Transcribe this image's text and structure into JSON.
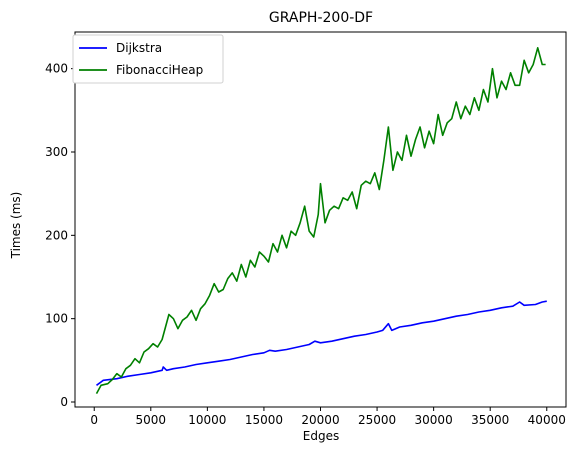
{
  "chart_data": {
    "type": "line",
    "title": "GRAPH-200-DF",
    "xlabel": "Edges",
    "ylabel": "Times (ms)",
    "xlim": [
      -1700,
      41700
    ],
    "ylim": [
      -6,
      444
    ],
    "xticks": [
      0,
      5000,
      10000,
      15000,
      20000,
      25000,
      30000,
      35000,
      40000
    ],
    "yticks": [
      0,
      100,
      200,
      300,
      400
    ],
    "legend": "top-left",
    "grid": false,
    "series": [
      {
        "name": "Dijkstra",
        "color": "#0000ff",
        "points": [
          [
            200,
            20
          ],
          [
            800,
            26
          ],
          [
            2000,
            28
          ],
          [
            3000,
            31
          ],
          [
            4000,
            33
          ],
          [
            5000,
            35
          ],
          [
            6000,
            38
          ],
          [
            6100,
            42
          ],
          [
            6400,
            38
          ],
          [
            7000,
            40
          ],
          [
            8000,
            42
          ],
          [
            9000,
            45
          ],
          [
            10000,
            47
          ],
          [
            11000,
            49
          ],
          [
            12000,
            51
          ],
          [
            13000,
            54
          ],
          [
            14000,
            57
          ],
          [
            15000,
            59
          ],
          [
            15500,
            62
          ],
          [
            16000,
            61
          ],
          [
            17000,
            63
          ],
          [
            18000,
            66
          ],
          [
            19000,
            69
          ],
          [
            19500,
            73
          ],
          [
            20000,
            71
          ],
          [
            21000,
            73
          ],
          [
            22000,
            76
          ],
          [
            23000,
            79
          ],
          [
            24000,
            81
          ],
          [
            25000,
            84
          ],
          [
            25500,
            86
          ],
          [
            26000,
            94
          ],
          [
            26300,
            86
          ],
          [
            27000,
            90
          ],
          [
            28000,
            92
          ],
          [
            29000,
            95
          ],
          [
            30000,
            97
          ],
          [
            31000,
            100
          ],
          [
            32000,
            103
          ],
          [
            33000,
            105
          ],
          [
            34000,
            108
          ],
          [
            35000,
            110
          ],
          [
            36000,
            113
          ],
          [
            37000,
            115
          ],
          [
            37600,
            120
          ],
          [
            38000,
            116
          ],
          [
            39000,
            117
          ],
          [
            39600,
            120
          ],
          [
            40000,
            121
          ]
        ]
      },
      {
        "name": "FibonacciHeap",
        "color": "#008000",
        "points": [
          [
            200,
            10
          ],
          [
            600,
            20
          ],
          [
            1200,
            22
          ],
          [
            1600,
            27
          ],
          [
            2000,
            34
          ],
          [
            2400,
            30
          ],
          [
            2800,
            40
          ],
          [
            3200,
            44
          ],
          [
            3600,
            52
          ],
          [
            4000,
            47
          ],
          [
            4400,
            60
          ],
          [
            4800,
            64
          ],
          [
            5200,
            70
          ],
          [
            5600,
            66
          ],
          [
            6000,
            75
          ],
          [
            6300,
            90
          ],
          [
            6600,
            105
          ],
          [
            7000,
            100
          ],
          [
            7400,
            88
          ],
          [
            7800,
            98
          ],
          [
            8200,
            102
          ],
          [
            8600,
            110
          ],
          [
            9000,
            98
          ],
          [
            9400,
            112
          ],
          [
            9800,
            118
          ],
          [
            10200,
            128
          ],
          [
            10600,
            142
          ],
          [
            11000,
            132
          ],
          [
            11400,
            135
          ],
          [
            11800,
            148
          ],
          [
            12200,
            155
          ],
          [
            12600,
            145
          ],
          [
            13000,
            165
          ],
          [
            13400,
            150
          ],
          [
            13800,
            170
          ],
          [
            14200,
            162
          ],
          [
            14600,
            180
          ],
          [
            15000,
            175
          ],
          [
            15400,
            168
          ],
          [
            15800,
            190
          ],
          [
            16200,
            180
          ],
          [
            16600,
            200
          ],
          [
            17000,
            185
          ],
          [
            17400,
            205
          ],
          [
            17800,
            200
          ],
          [
            18200,
            215
          ],
          [
            18600,
            235
          ],
          [
            19000,
            205
          ],
          [
            19400,
            198
          ],
          [
            19800,
            225
          ],
          [
            20000,
            262
          ],
          [
            20400,
            215
          ],
          [
            20800,
            230
          ],
          [
            21200,
            235
          ],
          [
            21600,
            232
          ],
          [
            22000,
            245
          ],
          [
            22400,
            242
          ],
          [
            22800,
            252
          ],
          [
            23200,
            232
          ],
          [
            23600,
            260
          ],
          [
            24000,
            265
          ],
          [
            24400,
            262
          ],
          [
            24800,
            275
          ],
          [
            25200,
            255
          ],
          [
            25600,
            290
          ],
          [
            26000,
            330
          ],
          [
            26400,
            278
          ],
          [
            26800,
            300
          ],
          [
            27200,
            290
          ],
          [
            27600,
            320
          ],
          [
            28000,
            295
          ],
          [
            28400,
            315
          ],
          [
            28800,
            330
          ],
          [
            29200,
            305
          ],
          [
            29600,
            325
          ],
          [
            30000,
            310
          ],
          [
            30400,
            345
          ],
          [
            30800,
            320
          ],
          [
            31200,
            335
          ],
          [
            31600,
            340
          ],
          [
            32000,
            360
          ],
          [
            32400,
            340
          ],
          [
            32800,
            355
          ],
          [
            33200,
            345
          ],
          [
            33600,
            365
          ],
          [
            34000,
            350
          ],
          [
            34400,
            375
          ],
          [
            34800,
            360
          ],
          [
            35200,
            400
          ],
          [
            35600,
            365
          ],
          [
            36000,
            385
          ],
          [
            36400,
            375
          ],
          [
            36800,
            395
          ],
          [
            37200,
            380
          ],
          [
            37600,
            380
          ],
          [
            38000,
            410
          ],
          [
            38400,
            395
          ],
          [
            38800,
            405
          ],
          [
            39200,
            425
          ],
          [
            39600,
            405
          ],
          [
            39900,
            405
          ]
        ]
      }
    ]
  }
}
